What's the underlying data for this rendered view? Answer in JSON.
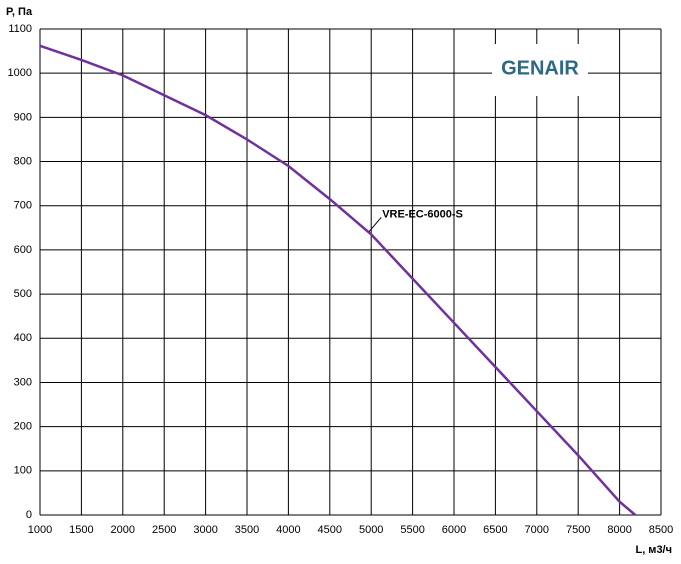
{
  "chart_data": {
    "type": "line",
    "y_label": "P, Па",
    "x_label": "L, м3/ч",
    "logo": "GENAIR",
    "xlim": [
      1000,
      8500
    ],
    "xticks": [
      1000,
      1500,
      2000,
      2500,
      3000,
      3500,
      4000,
      4500,
      5000,
      5500,
      6000,
      6500,
      7000,
      7500,
      8000,
      8500
    ],
    "ylim": [
      0,
      1100
    ],
    "yticks": [
      0,
      100,
      200,
      300,
      400,
      500,
      600,
      700,
      800,
      900,
      1000,
      1100
    ],
    "grid": true,
    "series": [
      {
        "name": "VRE-EC-6000-S",
        "color": "#7030a0",
        "x": [
          1000,
          1500,
          2000,
          2500,
          3000,
          3500,
          4000,
          4500,
          5000,
          5500,
          6000,
          6500,
          7000,
          7500,
          8000,
          8190
        ],
        "values": [
          1062,
          1030,
          995,
          950,
          905,
          850,
          790,
          715,
          635,
          535,
          435,
          335,
          235,
          135,
          30,
          0
        ]
      }
    ]
  }
}
